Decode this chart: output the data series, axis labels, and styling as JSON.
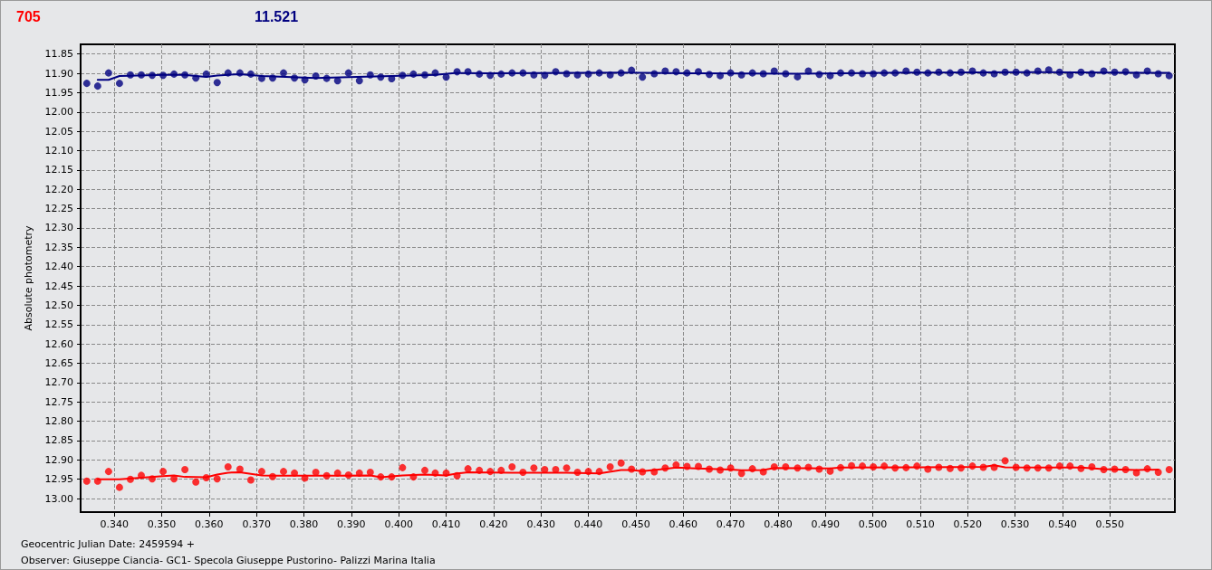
{
  "chart_data": {
    "type": "scatter",
    "xlabel": "Geocentric Julian Date: 2459594 +",
    "ylabel": "Absolute photometry",
    "annotations": [
      "705",
      "11.521",
      "Observer: Giuseppe Ciancia- GC1- Specola Giuseppe Pustorino- Palizzi Marina Italia"
    ],
    "xlim": [
      0.3329,
      0.5637
    ],
    "ylim": [
      13.035,
      11.825
    ],
    "xticks": [
      {
        "value": 0.34,
        "label": "0.340"
      },
      {
        "value": 0.35,
        "label": "0.350"
      },
      {
        "value": 0.36,
        "label": "0.360"
      },
      {
        "value": 0.37,
        "label": "0.370"
      },
      {
        "value": 0.38,
        "label": "0.380"
      },
      {
        "value": 0.39,
        "label": "0.390"
      },
      {
        "value": 0.4,
        "label": "0.400"
      },
      {
        "value": 0.41,
        "label": "0.410"
      },
      {
        "value": 0.42,
        "label": "0.420"
      },
      {
        "value": 0.43,
        "label": "0.430"
      },
      {
        "value": 0.44,
        "label": "0.440"
      },
      {
        "value": 0.45,
        "label": "0.450"
      },
      {
        "value": 0.46,
        "label": "0.460"
      },
      {
        "value": 0.47,
        "label": "0.470"
      },
      {
        "value": 0.48,
        "label": "0.480"
      },
      {
        "value": 0.49,
        "label": "0.490"
      },
      {
        "value": 0.5,
        "label": "0.500"
      },
      {
        "value": 0.51,
        "label": "0.510"
      },
      {
        "value": 0.52,
        "label": "0.520"
      },
      {
        "value": 0.53,
        "label": "0.530"
      },
      {
        "value": 0.54,
        "label": "0.540"
      },
      {
        "value": 0.55,
        "label": "0.550"
      }
    ],
    "yticks": [
      {
        "value": 11.85,
        "label": "11.85"
      },
      {
        "value": 11.9,
        "label": "11.90"
      },
      {
        "value": 11.95,
        "label": "11.95"
      },
      {
        "value": 12.0,
        "label": "12.00"
      },
      {
        "value": 12.05,
        "label": "12.05"
      },
      {
        "value": 12.1,
        "label": "12.10"
      },
      {
        "value": 12.15,
        "label": "12.15"
      },
      {
        "value": 12.2,
        "label": "12.20"
      },
      {
        "value": 12.25,
        "label": "12.25"
      },
      {
        "value": 12.3,
        "label": "12.30"
      },
      {
        "value": 12.35,
        "label": "12.35"
      },
      {
        "value": 12.4,
        "label": "12.40"
      },
      {
        "value": 12.45,
        "label": "12.45"
      },
      {
        "value": 12.5,
        "label": "12.50"
      },
      {
        "value": 12.55,
        "label": "12.55"
      },
      {
        "value": 12.6,
        "label": "12.60"
      },
      {
        "value": 12.65,
        "label": "12.65"
      },
      {
        "value": 12.7,
        "label": "12.70"
      },
      {
        "value": 12.75,
        "label": "12.75"
      },
      {
        "value": 12.8,
        "label": "12.80"
      },
      {
        "value": 12.85,
        "label": "12.85"
      },
      {
        "value": 12.9,
        "label": "12.90"
      },
      {
        "value": 12.95,
        "label": "12.95"
      },
      {
        "value": 13.0,
        "label": "13.00"
      }
    ],
    "grid": true,
    "line_style": "dashed",
    "marker": "circle",
    "series": [
      {
        "color": "#ff0000",
        "x": [
          0.3342,
          0.3365,
          0.3388,
          0.3411,
          0.3434,
          0.3457,
          0.348,
          0.3503,
          0.3526,
          0.3549,
          0.3572,
          0.3594,
          0.3617,
          0.364,
          0.3665,
          0.3688,
          0.3711,
          0.3734,
          0.3757,
          0.378,
          0.3802,
          0.3825,
          0.3848,
          0.3871,
          0.3894,
          0.3917,
          0.394,
          0.3962,
          0.3985,
          0.4008,
          0.4031,
          0.4055,
          0.4077,
          0.41,
          0.4123,
          0.4146,
          0.417,
          0.4193,
          0.4216,
          0.4239,
          0.4262,
          0.4285,
          0.4308,
          0.4331,
          0.4354,
          0.4377,
          0.44,
          0.4423,
          0.4446,
          0.4469,
          0.4491,
          0.4514,
          0.4539,
          0.4562,
          0.4585,
          0.4608,
          0.4632,
          0.4655,
          0.4678,
          0.47,
          0.4723,
          0.4746,
          0.4769,
          0.4792,
          0.4816,
          0.4841,
          0.4864,
          0.4887,
          0.491,
          0.4932,
          0.4955,
          0.4978,
          0.5001,
          0.5024,
          0.5047,
          0.507,
          0.5093,
          0.5116,
          0.5139,
          0.5163,
          0.5186,
          0.521,
          0.5233,
          0.5256,
          0.5279,
          0.5302,
          0.5325,
          0.5348,
          0.5371,
          0.5394,
          0.5416,
          0.5439,
          0.5462,
          0.5487,
          0.551,
          0.5533,
          0.5556,
          0.5579,
          0.5602,
          0.5625
        ],
        "values": [
          12.955,
          12.955,
          12.93,
          12.971,
          12.95,
          12.94,
          12.949,
          12.93,
          12.949,
          12.925,
          12.957,
          12.946,
          12.949,
          12.918,
          12.924,
          12.952,
          12.93,
          12.943,
          12.93,
          12.934,
          12.947,
          12.932,
          12.941,
          12.934,
          12.939,
          12.934,
          12.932,
          12.944,
          12.944,
          12.92,
          12.944,
          12.927,
          12.934,
          12.934,
          12.941,
          12.923,
          12.927,
          12.93,
          12.927,
          12.918,
          12.932,
          12.921,
          12.925,
          12.925,
          12.921,
          12.932,
          12.93,
          12.93,
          12.918,
          12.908,
          12.924,
          12.931,
          12.931,
          12.921,
          12.913,
          12.917,
          12.917,
          12.924,
          12.926,
          12.921,
          12.935,
          12.923,
          12.931,
          12.918,
          12.918,
          12.921,
          12.919,
          12.924,
          12.929,
          12.92,
          12.915,
          12.916,
          12.918,
          12.916,
          12.921,
          12.92,
          12.916,
          12.924,
          12.919,
          12.922,
          12.921,
          12.916,
          12.919,
          12.919,
          12.902,
          12.919,
          12.921,
          12.921,
          12.921,
          12.916,
          12.916,
          12.922,
          12.918,
          12.925,
          12.924,
          12.925,
          12.933,
          12.923,
          12.932,
          12.925
        ]
      },
      {
        "color": "#000080",
        "x": [
          0.3342,
          0.3365,
          0.3388,
          0.3411,
          0.3434,
          0.3457,
          0.348,
          0.3503,
          0.3526,
          0.3549,
          0.3572,
          0.3594,
          0.3617,
          0.364,
          0.3665,
          0.3688,
          0.3711,
          0.3734,
          0.3757,
          0.378,
          0.3802,
          0.3825,
          0.3848,
          0.3871,
          0.3894,
          0.3917,
          0.394,
          0.3962,
          0.3985,
          0.4008,
          0.4031,
          0.4055,
          0.4077,
          0.41,
          0.4123,
          0.4146,
          0.417,
          0.4193,
          0.4216,
          0.4239,
          0.4262,
          0.4285,
          0.4308,
          0.4331,
          0.4354,
          0.4377,
          0.44,
          0.4423,
          0.4446,
          0.4469,
          0.4491,
          0.4514,
          0.4539,
          0.4562,
          0.4585,
          0.4608,
          0.4632,
          0.4655,
          0.4678,
          0.47,
          0.4723,
          0.4746,
          0.4769,
          0.4792,
          0.4816,
          0.4841,
          0.4864,
          0.4887,
          0.491,
          0.4932,
          0.4955,
          0.4978,
          0.5001,
          0.5024,
          0.5047,
          0.507,
          0.5093,
          0.5116,
          0.5139,
          0.5163,
          0.5186,
          0.521,
          0.5233,
          0.5256,
          0.5279,
          0.5302,
          0.5325,
          0.5348,
          0.5371,
          0.5394,
          0.5416,
          0.5439,
          0.5462,
          0.5487,
          0.551,
          0.5533,
          0.5556,
          0.5579,
          0.5602,
          0.5625
        ],
        "values": [
          11.926,
          11.933,
          11.899,
          11.926,
          11.904,
          11.904,
          11.905,
          11.905,
          11.902,
          11.904,
          11.912,
          11.902,
          11.924,
          11.899,
          11.899,
          11.902,
          11.913,
          11.912,
          11.899,
          11.912,
          11.917,
          11.907,
          11.913,
          11.919,
          11.899,
          11.919,
          11.904,
          11.91,
          11.914,
          11.905,
          11.902,
          11.904,
          11.899,
          11.91,
          11.896,
          11.896,
          11.902,
          11.905,
          11.902,
          11.899,
          11.899,
          11.904,
          11.905,
          11.896,
          11.901,
          11.904,
          11.902,
          11.899,
          11.904,
          11.899,
          11.892,
          11.91,
          11.901,
          11.894,
          11.896,
          11.899,
          11.896,
          11.903,
          11.906,
          11.899,
          11.904,
          11.899,
          11.901,
          11.894,
          11.901,
          11.909,
          11.894,
          11.903,
          11.906,
          11.899,
          11.899,
          11.901,
          11.901,
          11.899,
          11.899,
          11.894,
          11.897,
          11.899,
          11.897,
          11.899,
          11.897,
          11.894,
          11.899,
          11.901,
          11.897,
          11.897,
          11.899,
          11.894,
          11.891,
          11.897,
          11.904,
          11.897,
          11.901,
          11.894,
          11.897,
          11.896,
          11.904,
          11.894,
          11.901,
          11.906
        ]
      },
      {
        "type": "line",
        "color": "#ff0000",
        "marker": "none",
        "line_style": "solid",
        "x": [
          0.3365,
          0.3411,
          0.3503,
          0.3526,
          0.3549,
          0.3594,
          0.3617,
          0.364,
          0.3665,
          0.3711,
          0.3734,
          0.3871,
          0.394,
          0.3962,
          0.4008,
          0.4055,
          0.41,
          0.4123,
          0.4146,
          0.4239,
          0.4354,
          0.4423,
          0.4469,
          0.4491,
          0.4514,
          0.4562,
          0.4585,
          0.47,
          0.4723,
          0.4769,
          0.4792,
          0.491,
          0.4932,
          0.5233,
          0.5256,
          0.5279,
          0.5439,
          0.5487,
          0.5556,
          0.5602
        ],
        "values": [
          12.95,
          12.95,
          12.942,
          12.94,
          12.944,
          12.945,
          12.938,
          12.933,
          12.932,
          12.94,
          12.941,
          12.941,
          12.94,
          12.945,
          12.94,
          12.938,
          12.94,
          12.935,
          12.932,
          12.933,
          12.933,
          12.935,
          12.926,
          12.926,
          12.929,
          12.923,
          12.92,
          12.925,
          12.927,
          12.926,
          12.921,
          12.922,
          12.92,
          12.918,
          12.914,
          12.919,
          12.92,
          12.924,
          12.926,
          12.925
        ]
      },
      {
        "type": "line",
        "color": "#000080",
        "marker": "none",
        "line_style": "solid",
        "x": [
          0.3365,
          0.3388,
          0.3411,
          0.3503,
          0.3549,
          0.3572,
          0.3594,
          0.3617,
          0.364,
          0.3665,
          0.3711,
          0.3825,
          0.3894,
          0.4077,
          0.4123,
          0.4193,
          0.4469,
          0.4632,
          0.4841,
          0.507,
          0.5348,
          0.5625
        ],
        "values": [
          11.917,
          11.917,
          11.907,
          11.904,
          11.904,
          11.907,
          11.909,
          11.906,
          11.904,
          11.902,
          11.907,
          11.912,
          11.91,
          11.904,
          11.899,
          11.9,
          11.898,
          11.9,
          11.901,
          11.898,
          11.897,
          11.899
        ]
      }
    ]
  }
}
